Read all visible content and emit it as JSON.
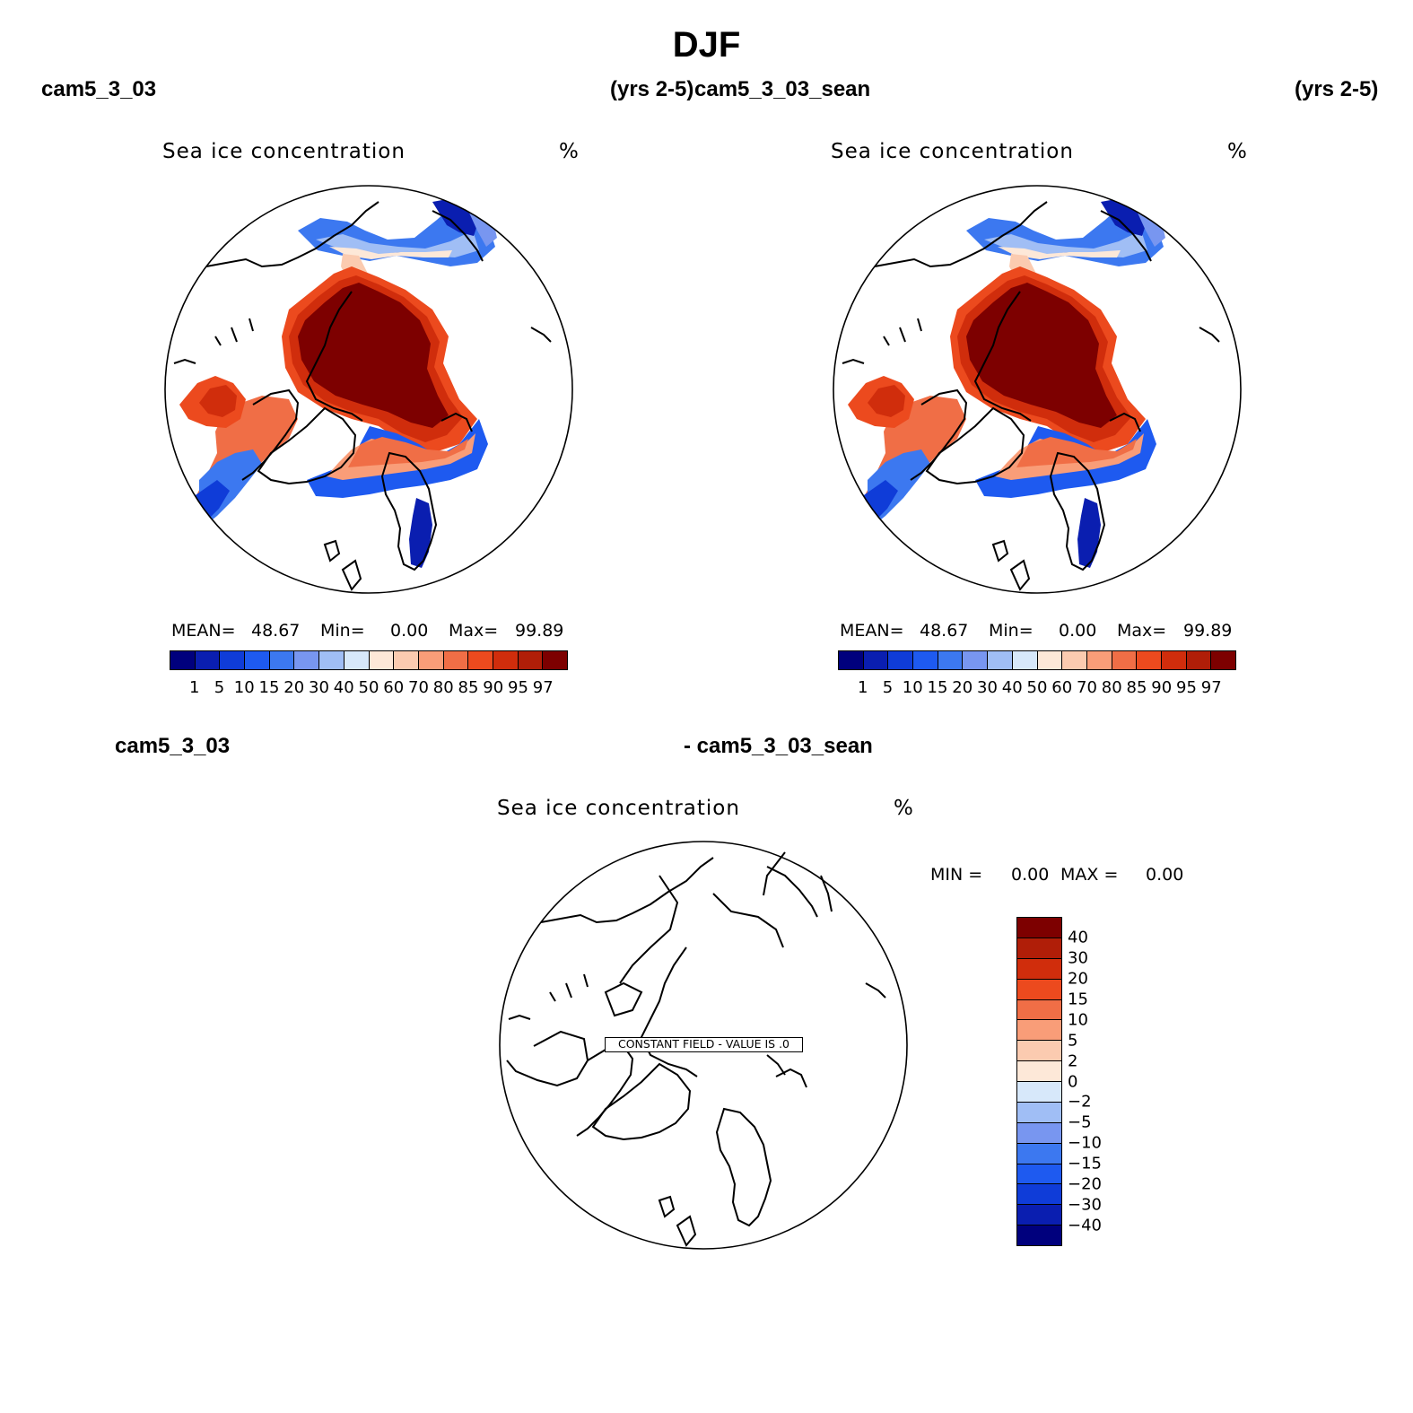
{
  "figure": {
    "title": "DJF",
    "top_left": {
      "case": "cam5_3_03",
      "years": "(yrs 2-5)"
    },
    "top_right": {
      "case": "cam5_3_03_sean",
      "years": "(yrs 2-5)"
    },
    "bottom": {
      "case_a": "cam5_3_03",
      "case_b": "- cam5_3_03_sean"
    }
  },
  "panels": {
    "left": {
      "variable": "Sea ice concentration",
      "units": "%",
      "mean_label": "MEAN=",
      "mean_value": "48.67",
      "min_label": "Min=",
      "min_value": "0.00",
      "max_label": "Max=",
      "max_value": "99.89"
    },
    "right": {
      "variable": "Sea ice concentration",
      "units": "%",
      "mean_label": "MEAN=",
      "mean_value": "48.67",
      "min_label": "Min=",
      "min_value": "0.00",
      "max_label": "Max=",
      "max_value": "99.89"
    },
    "diff": {
      "variable": "Sea ice concentration",
      "units": "%",
      "min_label": "MIN =",
      "min_value": "0.00",
      "max_label": "MAX =",
      "max_value": "0.00",
      "constant_note": "CONSTANT FIELD - VALUE IS .0"
    }
  },
  "colorbar_main": {
    "levels": [
      "1",
      "5",
      "10",
      "15",
      "20",
      "30",
      "40",
      "50",
      "60",
      "70",
      "80",
      "85",
      "90",
      "95",
      "97"
    ],
    "colors": [
      "#00007d",
      "#0a1eb0",
      "#0f3cd8",
      "#1e5af0",
      "#3c78f0",
      "#7896f0",
      "#a0bef5",
      "#d7e8fa",
      "#fde8d8",
      "#fbcbb0",
      "#f99d78",
      "#f06e46",
      "#ec4a1e",
      "#d02d0c",
      "#b01e08",
      "#7d0000"
    ]
  },
  "colorbar_diff": {
    "levels": [
      "40",
      "30",
      "20",
      "15",
      "10",
      "5",
      "2",
      "0",
      "−2",
      "−5",
      "−10",
      "−15",
      "−20",
      "−30",
      "−40"
    ],
    "colors": [
      "#7d0000",
      "#b01e08",
      "#d02d0c",
      "#ec4a1e",
      "#f06e46",
      "#f99d78",
      "#fbcbb0",
      "#fde8d8",
      "#d7e8fa",
      "#a0bef5",
      "#7896f0",
      "#3c78f0",
      "#1e5af0",
      "#0f3cd8",
      "#0a1eb0",
      "#00007d"
    ]
  }
}
